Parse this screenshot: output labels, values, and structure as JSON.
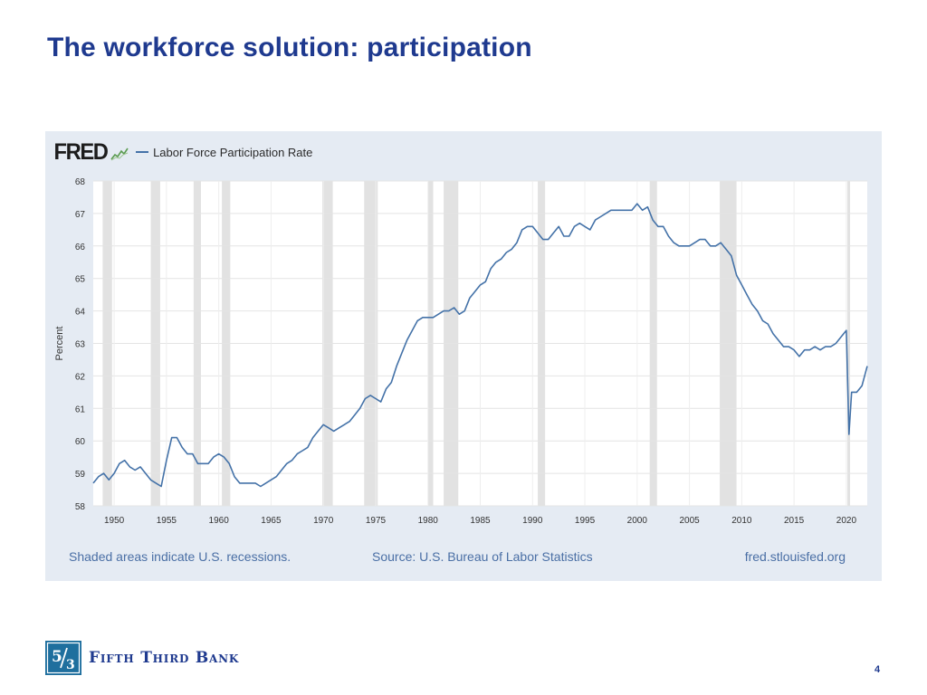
{
  "slide": {
    "title": "The workforce solution: participation",
    "page_number": "4",
    "brand_name": "Fifth Third Bank"
  },
  "colors": {
    "title": "#1f3a8f",
    "series_line": "#4472a8",
    "recession_shade": "#e2e2e2",
    "panel_background": "#e5ebf3",
    "footer_text": "#4a6fa5",
    "brand_logo": "#1f6f9e"
  },
  "chart_data": {
    "type": "line",
    "source_logo": "FRED",
    "legend": [
      {
        "label": "Labor Force Participation Rate"
      }
    ],
    "ylabel": "Percent",
    "xlabel": "",
    "ylim": [
      58,
      68
    ],
    "xlim": [
      1948,
      2022
    ],
    "yticks": [
      58,
      59,
      60,
      61,
      62,
      63,
      64,
      65,
      66,
      67,
      68
    ],
    "xticks": [
      1950,
      1955,
      1960,
      1965,
      1970,
      1975,
      1980,
      1985,
      1990,
      1995,
      2000,
      2005,
      2010,
      2015,
      2020
    ],
    "grid": true,
    "recessions": [
      [
        1948.9,
        1949.8
      ],
      [
        1953.5,
        1954.4
      ],
      [
        1957.6,
        1958.3
      ],
      [
        1960.3,
        1961.1
      ],
      [
        1969.9,
        1970.9
      ],
      [
        1973.9,
        1975.2
      ],
      [
        1980.0,
        1980.5
      ],
      [
        1981.5,
        1982.9
      ],
      [
        1990.5,
        1991.2
      ],
      [
        2001.2,
        2001.9
      ],
      [
        2007.9,
        2009.5
      ],
      [
        2020.1,
        2020.3
      ]
    ],
    "series": [
      {
        "name": "Labor Force Participation Rate",
        "x": [
          1948.0,
          1948.5,
          1949.0,
          1949.5,
          1950.0,
          1950.5,
          1951.0,
          1951.5,
          1952.0,
          1952.5,
          1953.0,
          1953.5,
          1954.0,
          1954.5,
          1955.0,
          1955.5,
          1956.0,
          1956.5,
          1957.0,
          1957.5,
          1958.0,
          1958.5,
          1959.0,
          1959.5,
          1960.0,
          1960.5,
          1961.0,
          1961.5,
          1962.0,
          1962.5,
          1963.0,
          1963.5,
          1964.0,
          1964.5,
          1965.0,
          1965.5,
          1966.0,
          1966.5,
          1967.0,
          1967.5,
          1968.0,
          1968.5,
          1969.0,
          1969.5,
          1970.0,
          1970.5,
          1971.0,
          1971.5,
          1972.0,
          1972.5,
          1973.0,
          1973.5,
          1974.0,
          1974.5,
          1975.0,
          1975.5,
          1976.0,
          1976.5,
          1977.0,
          1977.5,
          1978.0,
          1978.5,
          1979.0,
          1979.5,
          1980.0,
          1980.5,
          1981.0,
          1981.5,
          1982.0,
          1982.5,
          1983.0,
          1983.5,
          1984.0,
          1984.5,
          1985.0,
          1985.5,
          1986.0,
          1986.5,
          1987.0,
          1987.5,
          1988.0,
          1988.5,
          1989.0,
          1989.5,
          1990.0,
          1990.5,
          1991.0,
          1991.5,
          1992.0,
          1992.5,
          1993.0,
          1993.5,
          1994.0,
          1994.5,
          1995.0,
          1995.5,
          1996.0,
          1996.5,
          1997.0,
          1997.5,
          1998.0,
          1998.5,
          1999.0,
          1999.5,
          2000.0,
          2000.5,
          2001.0,
          2001.5,
          2002.0,
          2002.5,
          2003.0,
          2003.5,
          2004.0,
          2004.5,
          2005.0,
          2005.5,
          2006.0,
          2006.5,
          2007.0,
          2007.5,
          2008.0,
          2008.5,
          2009.0,
          2009.5,
          2010.0,
          2010.5,
          2011.0,
          2011.5,
          2012.0,
          2012.5,
          2013.0,
          2013.5,
          2014.0,
          2014.5,
          2015.0,
          2015.5,
          2016.0,
          2016.5,
          2017.0,
          2017.5,
          2018.0,
          2018.5,
          2019.0,
          2019.5,
          2020.0,
          2020.25,
          2020.5,
          2021.0,
          2021.5,
          2022.0
        ],
        "y": [
          58.7,
          58.9,
          59.0,
          58.8,
          59.0,
          59.3,
          59.4,
          59.2,
          59.1,
          59.2,
          59.0,
          58.8,
          58.7,
          58.6,
          59.4,
          60.1,
          60.1,
          59.8,
          59.6,
          59.6,
          59.3,
          59.3,
          59.3,
          59.5,
          59.6,
          59.5,
          59.3,
          58.9,
          58.7,
          58.7,
          58.7,
          58.7,
          58.6,
          58.7,
          58.8,
          58.9,
          59.1,
          59.3,
          59.4,
          59.6,
          59.7,
          59.8,
          60.1,
          60.3,
          60.5,
          60.4,
          60.3,
          60.4,
          60.5,
          60.6,
          60.8,
          61.0,
          61.3,
          61.4,
          61.3,
          61.2,
          61.6,
          61.8,
          62.3,
          62.7,
          63.1,
          63.4,
          63.7,
          63.8,
          63.8,
          63.8,
          63.9,
          64.0,
          64.0,
          64.1,
          63.9,
          64.0,
          64.4,
          64.6,
          64.8,
          64.9,
          65.3,
          65.5,
          65.6,
          65.8,
          65.9,
          66.1,
          66.5,
          66.6,
          66.6,
          66.4,
          66.2,
          66.2,
          66.4,
          66.6,
          66.3,
          66.3,
          66.6,
          66.7,
          66.6,
          66.5,
          66.8,
          66.9,
          67.0,
          67.1,
          67.1,
          67.1,
          67.1,
          67.1,
          67.3,
          67.1,
          67.2,
          66.8,
          66.6,
          66.6,
          66.3,
          66.1,
          66.0,
          66.0,
          66.0,
          66.1,
          66.2,
          66.2,
          66.0,
          66.0,
          66.1,
          65.9,
          65.7,
          65.1,
          64.8,
          64.5,
          64.2,
          64.0,
          63.7,
          63.6,
          63.3,
          63.1,
          62.9,
          62.9,
          62.8,
          62.6,
          62.8,
          62.8,
          62.9,
          62.8,
          62.9,
          62.9,
          63.0,
          63.2,
          63.4,
          60.2,
          61.5,
          61.5,
          61.7,
          62.3
        ]
      }
    ],
    "footnote": "Shaded areas indicate U.S. recessions.",
    "source": "Source: U.S. Bureau of Labor Statistics",
    "url": "fred.stlouisfed.org"
  }
}
